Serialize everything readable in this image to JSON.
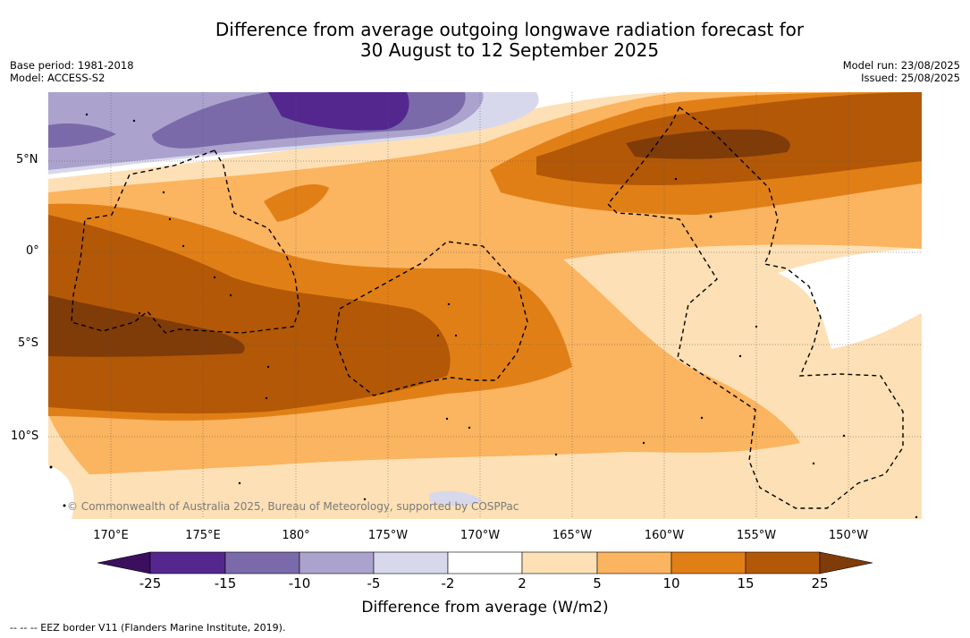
{
  "header": {
    "title_line1": "Difference from average outgoing longwave radiation forecast for",
    "title_line2": "30 August to 12 September 2025",
    "base_period": "Base period: 1981-2018",
    "model": "Model: ACCESS-S2",
    "model_run": "Model run: 23/08/2025",
    "issued": "Issued: 25/08/2025"
  },
  "map": {
    "latitude_labels": [
      "5°N",
      "0°",
      "5°S",
      "10°S"
    ],
    "longitude_labels": [
      "170°E",
      "175°E",
      "180°",
      "175°W",
      "170°W",
      "165°W",
      "160°W",
      "155°W",
      "150°W"
    ],
    "credit": "© Commonwealth of Australia 2025, Bureau of Meteorology, supported by COSPPac"
  },
  "colorbar": {
    "title": "Difference from average (W/m2)",
    "ticks": [
      "-25",
      "-15",
      "-10",
      "-5",
      "-2",
      "2",
      "5",
      "10",
      "15",
      "25"
    ],
    "colors": [
      "#3b0f5e",
      "#54278f",
      "#7b6aa9",
      "#aba3ce",
      "#d8d8ec",
      "#ffffff",
      "#fde0b5",
      "#fbb45f",
      "#e17f17",
      "#b35806",
      "#7f3b08"
    ]
  },
  "footnote": "-- -- -- EEZ border V11 (Flanders Marine Institute, 2019)."
}
